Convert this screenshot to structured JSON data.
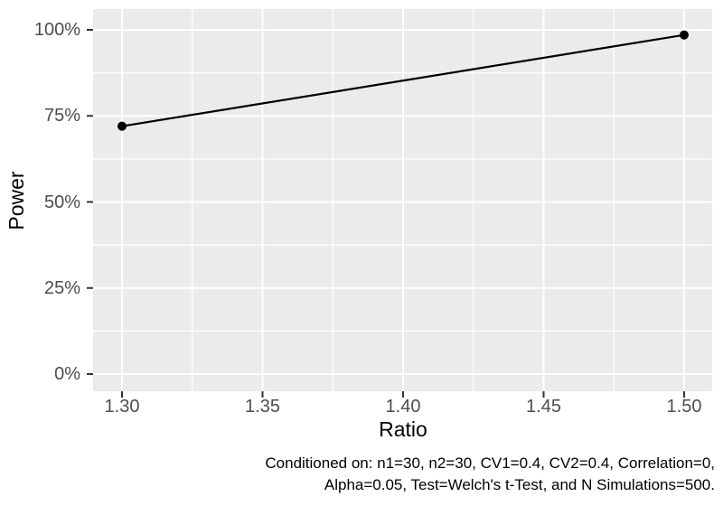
{
  "chart_data": {
    "type": "line",
    "title": "",
    "xlabel": "Ratio",
    "ylabel": "Power",
    "series": [
      {
        "name": "Power",
        "x": [
          1.3,
          1.5
        ],
        "y": [
          0.72,
          0.985
        ]
      }
    ],
    "xlim": [
      1.3,
      1.5
    ],
    "ylim": [
      0,
      1
    ],
    "x_ticks": [
      {
        "value": 1.3,
        "label": "1.30"
      },
      {
        "value": 1.35,
        "label": "1.35"
      },
      {
        "value": 1.4,
        "label": "1.40"
      },
      {
        "value": 1.45,
        "label": "1.45"
      },
      {
        "value": 1.5,
        "label": "1.50"
      }
    ],
    "y_ticks": [
      {
        "value": 0.0,
        "label": "0%"
      },
      {
        "value": 0.25,
        "label": "25%"
      },
      {
        "value": 0.5,
        "label": "50%"
      },
      {
        "value": 0.75,
        "label": "75%"
      },
      {
        "value": 1.0,
        "label": "100%"
      }
    ],
    "x_minor": [
      1.325,
      1.375,
      1.425,
      1.475
    ],
    "y_minor": [
      0.125,
      0.375,
      0.625,
      0.875
    ],
    "grid": true,
    "legend": "none",
    "point_shape": "filled-circle",
    "caption_lines": [
      "Conditioned on: n1=30, n2=30, CV1=0.4, CV2=0.4, Correlation=0,",
      "Alpha=0.05, Test=Welch's t-Test, and N Simulations=500."
    ]
  },
  "caption": {
    "line1": "Conditioned on: n1=30, n2=30, CV1=0.4, CV2=0.4, Correlation=0,",
    "line2": "Alpha=0.05, Test=Welch's t-Test, and N Simulations=500."
  },
  "colors": {
    "background": "#ffffff",
    "panel_background": "#ebebeb",
    "gridline": "#ffffff",
    "tick_label": "#4d4d4d",
    "tick_mark": "#333333",
    "line": "#000000",
    "point": "#000000",
    "text": "#000000"
  }
}
